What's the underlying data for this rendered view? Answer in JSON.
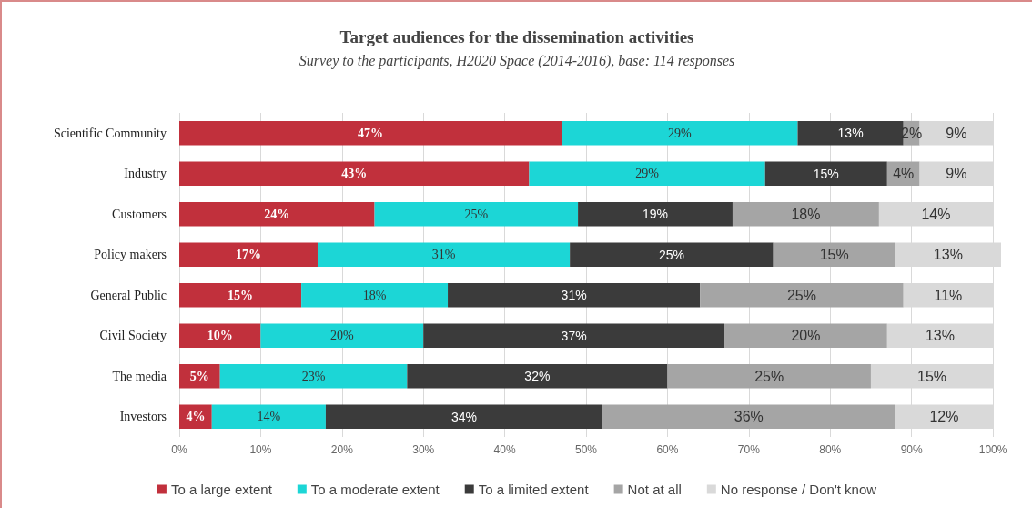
{
  "chart_data": {
    "type": "bar",
    "orientation": "horizontal",
    "stacked": true,
    "title": "Target audiences for the dissemination activities",
    "subtitle": "Survey to the participants, H2020 Space (2014-2016), base: 114 responses",
    "categories": [
      "Scientific Community",
      "Industry",
      "Customers",
      "Policy makers",
      "General Public",
      "Civil Society",
      "The media",
      "Investors"
    ],
    "series": [
      {
        "name": "To a large extent",
        "color": "#c1303c",
        "values": [
          47,
          43,
          24,
          17,
          15,
          10,
          5,
          4
        ],
        "value_labels": [
          "47%",
          "43%",
          "24%",
          "17%",
          "15%",
          "10%",
          "5%",
          "4%"
        ]
      },
      {
        "name": "To a moderate extent",
        "color": "#1cd6d6",
        "values": [
          29,
          29,
          25,
          31,
          18,
          20,
          23,
          14
        ],
        "value_labels": [
          "29%",
          "29%",
          "25%",
          "31%",
          "18%",
          "20%",
          "23%",
          "14%"
        ]
      },
      {
        "name": "To a limited extent",
        "color": "#3b3b3b",
        "values": [
          13,
          15,
          19,
          25,
          31,
          37,
          32,
          34
        ],
        "value_labels": [
          "13%",
          "15%",
          "19%",
          "25%",
          "31%",
          "37%",
          "32%",
          "34%"
        ]
      },
      {
        "name": "Not at all",
        "color": "#a5a5a5",
        "values": [
          2,
          4,
          18,
          15,
          25,
          20,
          25,
          36
        ],
        "value_labels": [
          "2%",
          "4%",
          "18%",
          "15%",
          "25%",
          "20%",
          "25%",
          "36%"
        ]
      },
      {
        "name": "No response / Don't know",
        "color": "#d9d9d9",
        "values": [
          9,
          9,
          14,
          13,
          11,
          13,
          15,
          12
        ],
        "value_labels": [
          "9%",
          "9%",
          "14%",
          "13%",
          "11%",
          "13%",
          "15%",
          "12%"
        ]
      }
    ],
    "xlim": [
      0,
      101
    ],
    "xticks": [
      {
        "value": 0,
        "label": "0%"
      },
      {
        "value": 10,
        "label": "10%"
      },
      {
        "value": 20,
        "label": "20%"
      },
      {
        "value": 30,
        "label": "30%"
      },
      {
        "value": 40,
        "label": "40%"
      },
      {
        "value": 50,
        "label": "50%"
      },
      {
        "value": 60,
        "label": "60%"
      },
      {
        "value": 70,
        "label": "70%"
      },
      {
        "value": 80,
        "label": "80%"
      },
      {
        "value": 90,
        "label": "90%"
      },
      {
        "value": 100,
        "label": "100%"
      }
    ],
    "grid": "x",
    "legend": "bottom"
  }
}
